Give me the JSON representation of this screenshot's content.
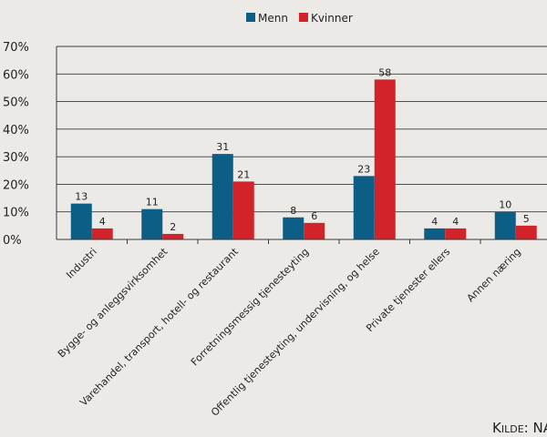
{
  "chart_data": {
    "type": "bar",
    "categories": [
      "Industri",
      "Bygge- og anleggsvirksomhet",
      "Varehandel, transport, hotell- og restaurant",
      "Forretningsmessig tjenesteyting",
      "Offentlig tjenesteyting, undervisning, og helse",
      "Private tjenester ellers",
      "Annen næring"
    ],
    "series": [
      {
        "name": "Menn",
        "color": "#0d5e86",
        "values": [
          13,
          11,
          31,
          8,
          23,
          4,
          10
        ]
      },
      {
        "name": "Kvinner",
        "color": "#d2232a",
        "values": [
          4,
          2,
          21,
          6,
          58,
          4,
          5
        ]
      }
    ],
    "yticks": [
      "0%",
      "10%",
      "20%",
      "30%",
      "40%",
      "50%",
      "60%",
      "70%"
    ],
    "ylim": [
      0,
      70
    ],
    "grid": true,
    "legend": "top-center",
    "source": "Kilde: NAV"
  }
}
